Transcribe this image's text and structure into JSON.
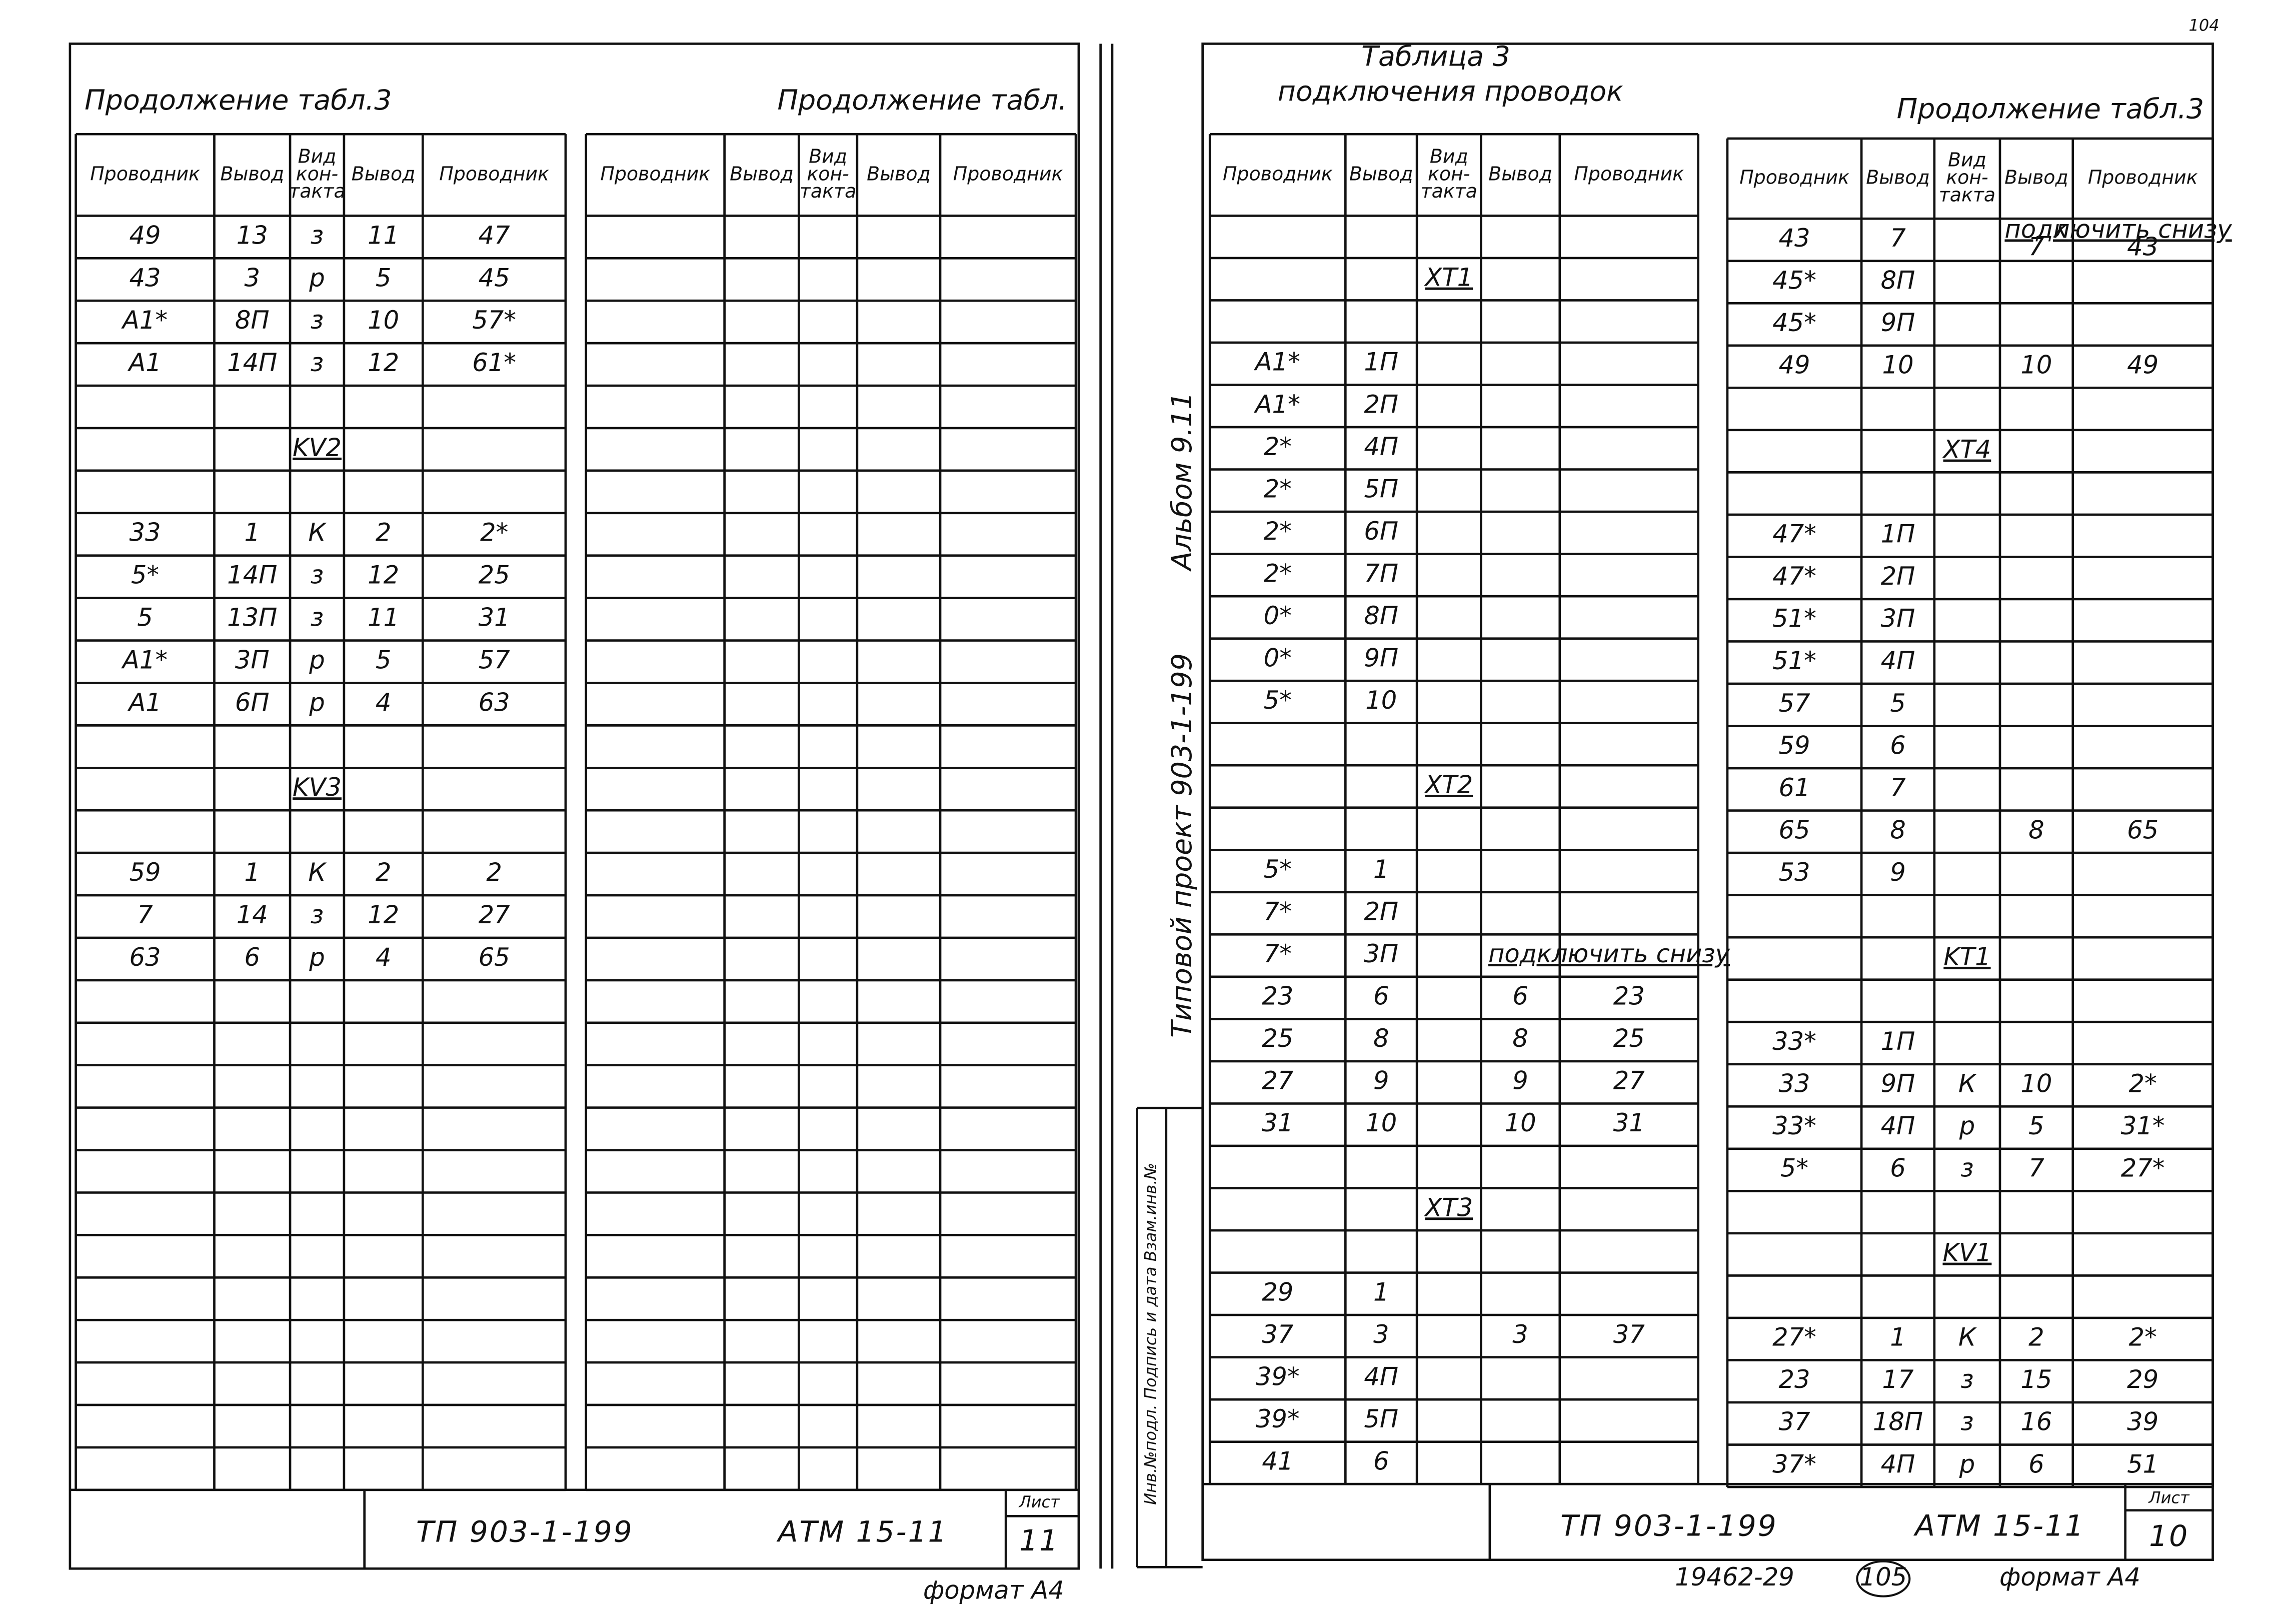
{
  "corner_mark": "104",
  "main_title": [
    "Таблица 3",
    "подключения проводок"
  ],
  "tables": [
    {
      "title": "Продолжение табл.3",
      "header": [
        "Проводник",
        "Вывод",
        [
          "Вид",
          "кон-",
          "такта"
        ],
        "Вывод",
        "Проводник"
      ],
      "rows": [
        [
          "49",
          "13",
          "з",
          "11",
          "47"
        ],
        [
          "43",
          "3",
          "р",
          "5",
          "45"
        ],
        [
          "А1*",
          "8П",
          "з",
          "10",
          "57*"
        ],
        [
          "А1",
          "14П",
          "з",
          "12",
          "61*"
        ],
        [
          null,
          null,
          null,
          null,
          null
        ],
        [
          null,
          null,
          "KV2",
          null,
          null
        ],
        [
          null,
          null,
          null,
          null,
          null
        ],
        [
          "33",
          "1",
          "К",
          "2",
          "2*"
        ],
        [
          "5*",
          "14П",
          "з",
          "12",
          "25"
        ],
        [
          "5",
          "13П",
          "з",
          "11",
          "31"
        ],
        [
          "А1*",
          "3П",
          "р",
          "5",
          "57"
        ],
        [
          "А1",
          "6П",
          "р",
          "4",
          "63"
        ],
        [
          null,
          null,
          null,
          null,
          null
        ],
        [
          null,
          null,
          "KV3",
          null,
          null
        ],
        [
          null,
          null,
          null,
          null,
          null
        ],
        [
          "59",
          "1",
          "К",
          "2",
          "2"
        ],
        [
          "7",
          "14",
          "з",
          "12",
          "27"
        ],
        [
          "63",
          "6",
          "р",
          "4",
          "65"
        ]
      ]
    },
    {
      "title": "Продолжение табл.",
      "header": [
        "Проводник",
        "Вывод",
        [
          "Вид",
          "кон-",
          "такта"
        ],
        "Вывод",
        "Проводник"
      ]
    },
    {
      "header": [
        "Проводник",
        "Вывод",
        [
          "Вид",
          "кон-",
          "такта"
        ],
        "Вывод",
        "Проводник"
      ],
      "rows": [
        [
          null,
          null,
          null,
          null,
          null
        ],
        [
          null,
          null,
          "XT1",
          null,
          null
        ],
        [
          null,
          null,
          null,
          null,
          null
        ],
        [
          "А1*",
          "1П",
          null,
          null,
          null
        ],
        [
          "А1*",
          "2П",
          null,
          null,
          null
        ],
        [
          "2*",
          "4П",
          null,
          null,
          null
        ],
        [
          "2*",
          "5П",
          null,
          null,
          null
        ],
        [
          "2*",
          "6П",
          null,
          null,
          null
        ],
        [
          "2*",
          "7П",
          null,
          null,
          null
        ],
        [
          "0*",
          "8П",
          null,
          null,
          null
        ],
        [
          "0*",
          "9П",
          null,
          null,
          null
        ],
        [
          "5*",
          "10",
          null,
          null,
          null
        ],
        [
          null,
          null,
          null,
          null,
          null
        ],
        [
          null,
          null,
          "XT2",
          null,
          null
        ],
        [
          null,
          null,
          null,
          null,
          null
        ],
        [
          "5*",
          "1",
          null,
          null,
          null
        ],
        [
          "7*",
          "2П",
          null,
          null,
          null
        ],
        [
          "7*",
          "3П",
          null,
          "подключить снизу",
          null
        ],
        [
          "23",
          "6",
          null,
          "6",
          "23"
        ],
        [
          "25",
          "8",
          null,
          "8",
          "25"
        ],
        [
          "27",
          "9",
          null,
          "9",
          "27"
        ],
        [
          "31",
          "10",
          null,
          "10",
          "31"
        ],
        [
          null,
          null,
          null,
          null,
          null
        ],
        [
          null,
          null,
          "XT3",
          null,
          null
        ],
        [
          null,
          null,
          null,
          null,
          null
        ],
        [
          "29",
          "1",
          null,
          null,
          null
        ],
        [
          "37",
          "3",
          null,
          "3",
          "37"
        ],
        [
          "39*",
          "4П",
          null,
          null,
          null
        ],
        [
          "39*",
          "5П",
          null,
          null,
          null
        ],
        [
          "41",
          "6",
          null,
          null,
          null
        ]
      ]
    },
    {
      "title": "Продолжение табл.3",
      "header": [
        "Проводник",
        "Вывод",
        [
          "Вид",
          "кон-",
          "такта"
        ],
        "Вывод",
        "Проводник"
      ],
      "rows": [
        [
          "43",
          "7",
          null,
          [
            "подк",
            "7"
          ],
          [
            "лючить снизу",
            "43"
          ]
        ],
        [
          "45*",
          "8П",
          null,
          null,
          null
        ],
        [
          "45*",
          "9П",
          null,
          null,
          null
        ],
        [
          "49",
          "10",
          null,
          "10",
          "49"
        ],
        [
          null,
          null,
          null,
          null,
          null
        ],
        [
          null,
          null,
          "XT4",
          null,
          null
        ],
        [
          null,
          null,
          null,
          null,
          null
        ],
        [
          "47*",
          "1П",
          null,
          null,
          null
        ],
        [
          "47*",
          "2П",
          null,
          null,
          null
        ],
        [
          "51*",
          "3П",
          null,
          null,
          null
        ],
        [
          "51*",
          "4П",
          null,
          null,
          null
        ],
        [
          "57",
          "5",
          null,
          null,
          null
        ],
        [
          "59",
          "6",
          null,
          null,
          null
        ],
        [
          "61",
          "7",
          null,
          null,
          null
        ],
        [
          "65",
          "8",
          null,
          "8",
          "65"
        ],
        [
          "53",
          "9",
          null,
          null,
          null
        ],
        [
          null,
          null,
          null,
          null,
          null
        ],
        [
          null,
          null,
          "KT1",
          null,
          null
        ],
        [
          null,
          null,
          null,
          null,
          null
        ],
        [
          "33*",
          "1П",
          null,
          null,
          null
        ],
        [
          "33",
          "9П",
          "К",
          "10",
          "2*"
        ],
        [
          "33*",
          "4П",
          "р",
          "5",
          "31*"
        ],
        [
          "5*",
          "6",
          "з",
          "7",
          "27*"
        ],
        [
          null,
          null,
          null,
          null,
          null
        ],
        [
          null,
          null,
          "KV1",
          null,
          null
        ],
        [
          null,
          null,
          null,
          null,
          null
        ],
        [
          "27*",
          "1",
          "К",
          "2",
          "2*"
        ],
        [
          "23",
          "17",
          "з",
          "15",
          "29"
        ],
        [
          "37",
          "18П",
          "з",
          "16",
          "39"
        ],
        [
          "37*",
          "4П",
          "р",
          "6",
          "51"
        ]
      ]
    }
  ],
  "side_text": {
    "project": "Типовой проект 903-1-199",
    "album": "Альбом 9.11",
    "inventory": "Инв.№подл. Подпись и дата Взам.инв.№"
  },
  "stamps": [
    {
      "project": "ТП 903-1-199",
      "code": "АТМ 15-11",
      "sheet_label": "Лист",
      "sheet": "11",
      "format": "формат А4"
    },
    {
      "project": "ТП 903-1-199",
      "code": "АТМ 15-11",
      "sheet_label": "Лист",
      "sheet": "10",
      "format": "формат А4",
      "order": "19462-29",
      "page": "105"
    }
  ]
}
